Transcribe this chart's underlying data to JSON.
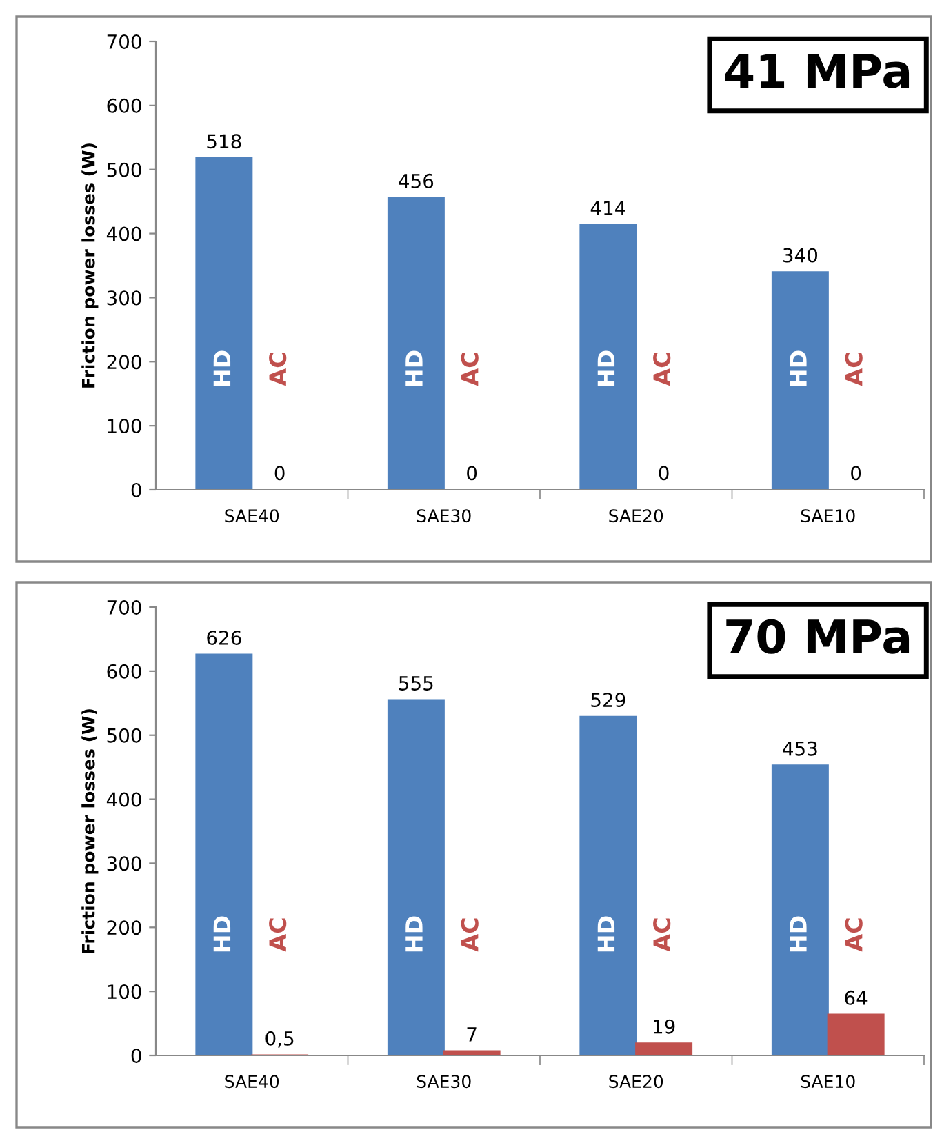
{
  "chart_data": [
    {
      "type": "bar",
      "annotations": [
        "41 MPa"
      ],
      "ylabel": "Friction power losses (W)",
      "categories": [
        "SAE40",
        "SAE30",
        "SAE20",
        "SAE10"
      ],
      "series": [
        {
          "name": "HD",
          "color": "#4f81bd",
          "values": [
            518,
            456,
            414,
            340
          ],
          "value_labels": [
            "518",
            "456",
            "414",
            "340"
          ]
        },
        {
          "name": "AC",
          "color": "#c0504d",
          "values": [
            0,
            0,
            0,
            0
          ],
          "value_labels": [
            "0",
            "0",
            "0",
            "0"
          ]
        }
      ],
      "ylim": [
        0,
        700
      ],
      "yticks": [
        0,
        100,
        200,
        300,
        400,
        500,
        600,
        700
      ],
      "grid": false,
      "legend": false
    },
    {
      "type": "bar",
      "annotations": [
        "70 MPa"
      ],
      "ylabel": "Friction power losses (W)",
      "categories": [
        "SAE40",
        "SAE30",
        "SAE20",
        "SAE10"
      ],
      "series": [
        {
          "name": "HD",
          "color": "#4f81bd",
          "values": [
            626,
            555,
            529,
            453
          ],
          "value_labels": [
            "626",
            "555",
            "529",
            "453"
          ]
        },
        {
          "name": "AC",
          "color": "#c0504d",
          "values": [
            0.5,
            7,
            19,
            64
          ],
          "value_labels": [
            "0,5",
            "7",
            "19",
            "64"
          ]
        }
      ],
      "ylim": [
        0,
        700
      ],
      "yticks": [
        0,
        100,
        200,
        300,
        400,
        500,
        600,
        700
      ],
      "grid": false,
      "legend": false
    }
  ]
}
